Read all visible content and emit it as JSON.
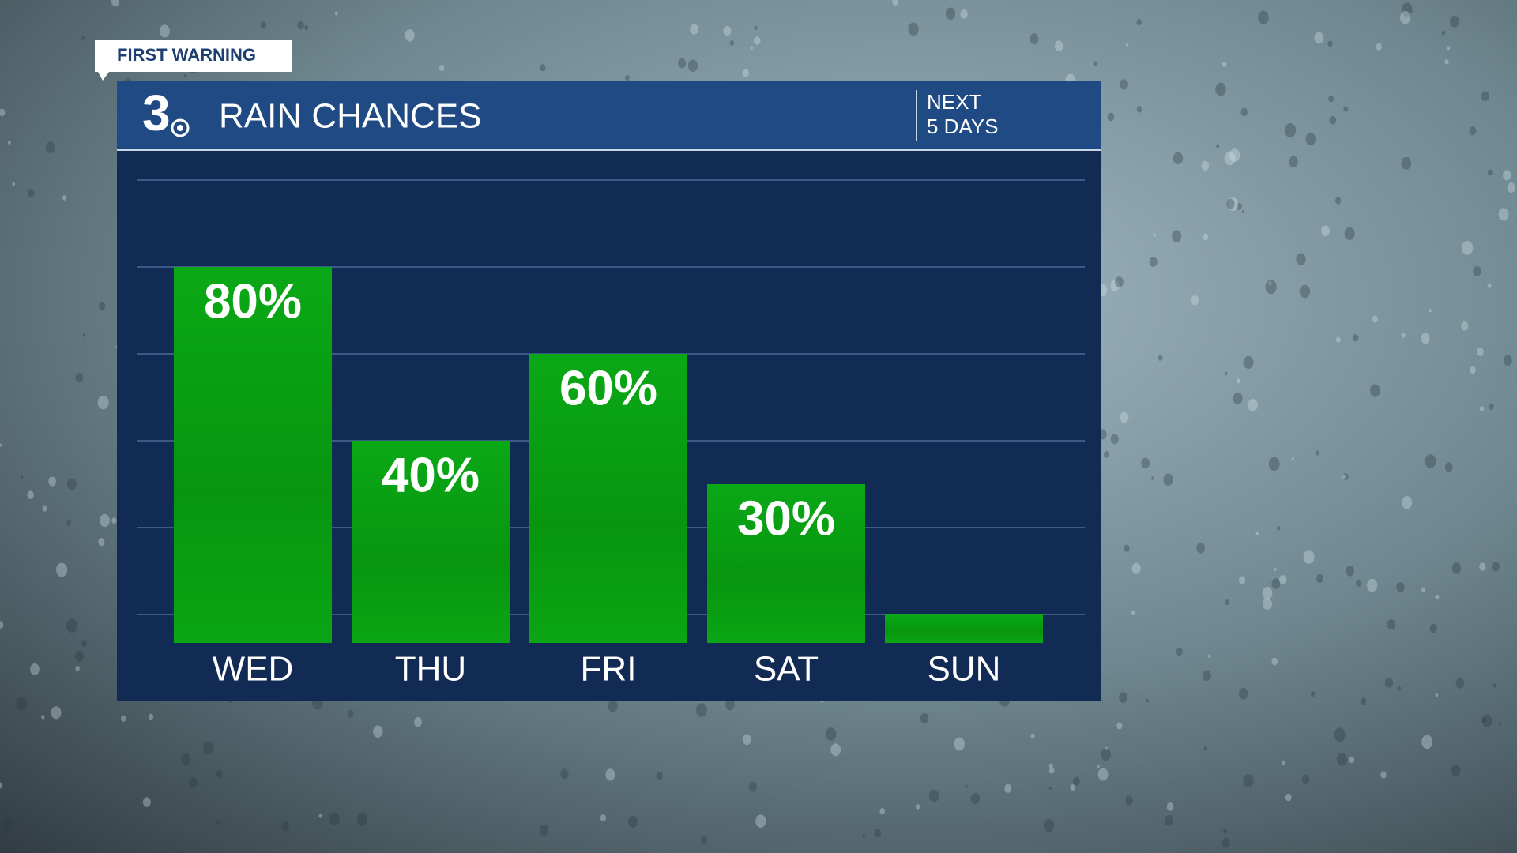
{
  "chart_data": {
    "type": "bar",
    "badge": "FIRST WARNING",
    "logo": "3",
    "title": "RAIN CHANCES",
    "subtitle": [
      "NEXT",
      "5 DAYS"
    ],
    "categories": [
      "WED",
      "THU",
      "FRI",
      "SAT",
      "SUN"
    ],
    "values": [
      80,
      40,
      60,
      30,
      0
    ],
    "value_labels": [
      "80%",
      "40%",
      "60%",
      "30%",
      null
    ],
    "color": "#09a114",
    "ylim": [
      0,
      100
    ],
    "yticks": [
      0,
      20,
      40,
      60,
      80,
      100
    ],
    "grid": true
  }
}
